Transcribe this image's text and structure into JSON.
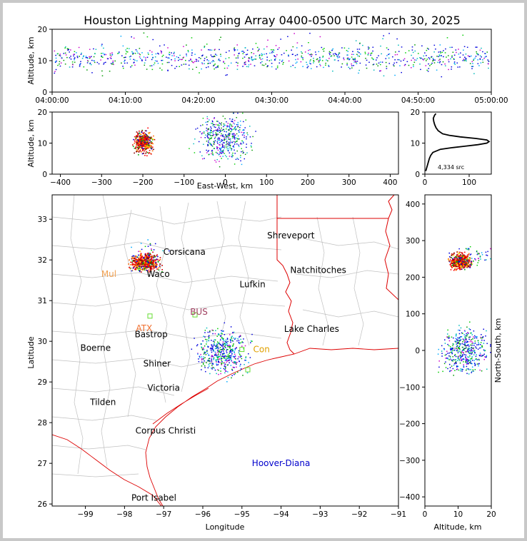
{
  "chart_data": [
    {
      "panel": "time-altitude",
      "type": "scatter",
      "title": "Houston Lightning Mapping Array 0400-0500 UTC March 30, 2025",
      "ylabel": "Altitude, km",
      "xlabel": "",
      "x_ticks": [
        "04:00:00",
        "04:10:00",
        "04:20:00",
        "04:30:00",
        "04:40:00",
        "04:50:00",
        "05:00:00"
      ],
      "xlim_minutes": [
        0,
        60
      ],
      "ylim": [
        0,
        20
      ],
      "y_ticks": [
        0,
        10,
        20
      ],
      "band": {
        "center_alt_km": 11,
        "spread_km": 1.8,
        "min_km": 5,
        "max_km": 19
      }
    },
    {
      "panel": "east-west-altitude",
      "type": "scatter",
      "xlabel": "East-West, km",
      "ylabel": "Altitude, km",
      "xlim": [
        -420,
        420
      ],
      "ylim": [
        0,
        20
      ],
      "x_ticks": [
        -400,
        -300,
        -200,
        -100,
        0,
        100,
        200,
        300,
        400
      ],
      "y_ticks": [
        0,
        10,
        20
      ],
      "clusters": [
        {
          "x_km": -200,
          "alt_km": 10.5,
          "dense": true
        },
        {
          "x_km": -5,
          "alt_km": 12,
          "dense": false
        }
      ]
    },
    {
      "panel": "altitude-histogram",
      "type": "line",
      "xlim": [
        0,
        150
      ],
      "ylim": [
        0,
        20
      ],
      "x_ticks": [
        0,
        100
      ],
      "y_ticks": [
        0,
        10,
        20
      ],
      "annotation": "4,334 src",
      "profile": [
        {
          "alt": 1,
          "count": 2
        },
        {
          "alt": 2,
          "count": 4
        },
        {
          "alt": 3,
          "count": 6
        },
        {
          "alt": 4,
          "count": 8
        },
        {
          "alt": 5,
          "count": 10
        },
        {
          "alt": 6,
          "count": 13
        },
        {
          "alt": 7,
          "count": 18
        },
        {
          "alt": 8,
          "count": 35
        },
        {
          "alt": 8.5,
          "count": 60
        },
        {
          "alt": 9,
          "count": 90
        },
        {
          "alt": 9.5,
          "count": 120
        },
        {
          "alt": 10,
          "count": 140
        },
        {
          "alt": 10.5,
          "count": 145
        },
        {
          "alt": 11,
          "count": 140
        },
        {
          "alt": 11.5,
          "count": 115
        },
        {
          "alt": 12,
          "count": 80
        },
        {
          "alt": 12.5,
          "count": 55
        },
        {
          "alt": 13,
          "count": 40
        },
        {
          "alt": 14,
          "count": 30
        },
        {
          "alt": 15,
          "count": 25
        },
        {
          "alt": 16,
          "count": 22
        },
        {
          "alt": 17,
          "count": 20
        },
        {
          "alt": 18,
          "count": 19
        },
        {
          "alt": 19,
          "count": 22
        },
        {
          "alt": 19.5,
          "count": 25
        }
      ]
    },
    {
      "panel": "plan-view",
      "type": "scatter",
      "xlabel": "Longitude",
      "ylabel": "Latitude",
      "xlim": [
        -99.85,
        -91
      ],
      "ylim": [
        25.95,
        33.6
      ],
      "x_ticks": [
        -99,
        -98,
        -97,
        -96,
        -95,
        -94,
        -93,
        -92,
        -91
      ],
      "y_ticks": [
        26,
        27,
        28,
        29,
        30,
        31,
        32,
        33
      ],
      "clusters": [
        {
          "lon": -97.5,
          "lat": 31.95,
          "dense": true
        },
        {
          "lon": -95.5,
          "lat": 29.75,
          "dense": false
        }
      ],
      "cities": [
        {
          "name": "Shreveport",
          "lon": -93.75,
          "lat": 32.6,
          "color": "#000000"
        },
        {
          "name": "Corsicana",
          "lon": -96.47,
          "lat": 32.2,
          "color": "#000000"
        },
        {
          "name": "Natchitoches",
          "lon": -93.05,
          "lat": 31.75,
          "color": "#000000"
        },
        {
          "name": "Waco",
          "lon": -97.14,
          "lat": 31.65,
          "color": "#000000"
        },
        {
          "name": "Lufkin",
          "lon": -94.73,
          "lat": 31.4,
          "color": "#000000"
        },
        {
          "name": "Lake Charles",
          "lon": -93.22,
          "lat": 30.3,
          "color": "#000000"
        },
        {
          "name": "Bastrop",
          "lon": -97.32,
          "lat": 30.17,
          "color": "#000000"
        },
        {
          "name": "Boerne",
          "lon": -98.74,
          "lat": 29.84,
          "color": "#000000"
        },
        {
          "name": "Shiner",
          "lon": -97.17,
          "lat": 29.45,
          "color": "#000000"
        },
        {
          "name": "Victoria",
          "lon": -97.0,
          "lat": 28.85,
          "color": "#000000"
        },
        {
          "name": "Tilden",
          "lon": -98.55,
          "lat": 28.5,
          "color": "#000000"
        },
        {
          "name": "Corpus Christi",
          "lon": -96.95,
          "lat": 27.8,
          "color": "#000000"
        },
        {
          "name": "Port Isabel",
          "lon": -97.25,
          "lat": 26.15,
          "color": "#000000"
        },
        {
          "name": "Hoover-Diana",
          "lon": -94.0,
          "lat": 27.0,
          "color": "#0000cc"
        },
        {
          "name": "Mul",
          "lon": -98.4,
          "lat": 31.65,
          "color": "#f0a050"
        },
        {
          "name": "ATX",
          "lon": -97.5,
          "lat": 30.32,
          "color": "#f07030"
        },
        {
          "name": "BUS",
          "lon": -96.1,
          "lat": 30.72,
          "color": "#a04060"
        },
        {
          "name": "Con",
          "lon": -94.5,
          "lat": 29.8,
          "color": "#e0a000"
        }
      ],
      "stations": [
        {
          "lon": -97.35,
          "lat": 30.62
        },
        {
          "lon": -96.2,
          "lat": 30.65
        },
        {
          "lon": -94.85,
          "lat": 29.3
        },
        {
          "lon": -95.0,
          "lat": 29.8
        }
      ]
    },
    {
      "panel": "altitude-north-south",
      "type": "scatter",
      "xlabel": "Altitude, km",
      "ylabel": "North-South, km",
      "xlim": [
        0,
        20
      ],
      "ylim": [
        -425,
        425
      ],
      "x_ticks": [
        0,
        10,
        20
      ],
      "y_ticks": [
        -400,
        -300,
        -200,
        -100,
        0,
        100,
        200,
        300,
        400
      ],
      "clusters": [
        {
          "alt_km": 10.5,
          "y_km": 245,
          "dense": true
        },
        {
          "alt_km": 12,
          "y_km": 0,
          "dense": false
        }
      ]
    }
  ]
}
